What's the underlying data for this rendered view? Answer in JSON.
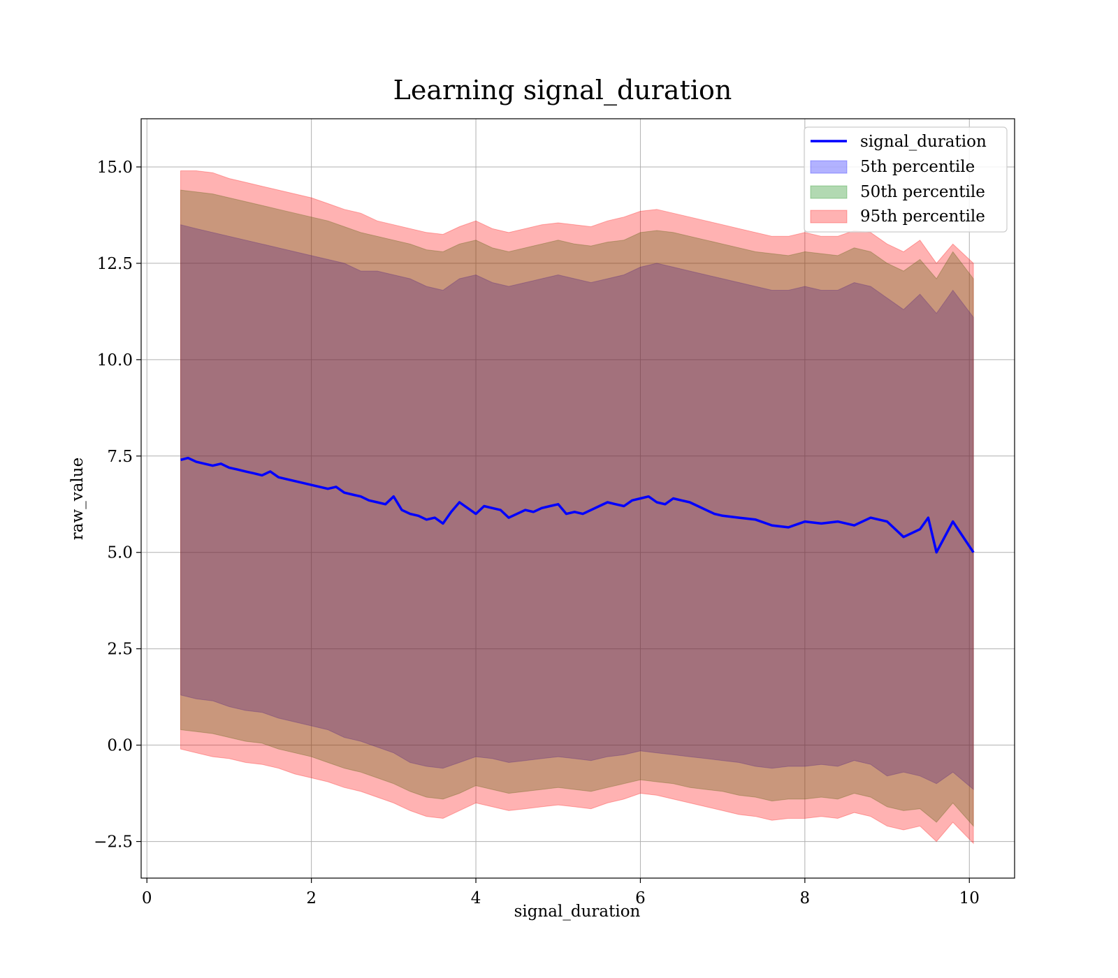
{
  "chart_data": {
    "type": "line",
    "title": "Learning signal_duration",
    "xlabel": "signal_duration",
    "ylabel": "raw_value",
    "xlim": [
      -0.07,
      10.55
    ],
    "ylim": [
      -3.45,
      16.25
    ],
    "grid": true,
    "legend_position": "top-right",
    "x_ticks": [
      0,
      2,
      4,
      6,
      8,
      10
    ],
    "x_tick_labels": [
      "0",
      "2",
      "4",
      "6",
      "8",
      "10"
    ],
    "y_ticks": [
      -2.5,
      0.0,
      2.5,
      5.0,
      7.5,
      10.0,
      12.5,
      15.0
    ],
    "y_tick_labels": [
      "−2.5",
      "0.0",
      "2.5",
      "5.0",
      "7.5",
      "10.0",
      "12.5",
      "15.0"
    ],
    "colors": {
      "line": "#0000ff",
      "p5": "#0000ff",
      "p50": "#008000",
      "p95": "#ff0000"
    },
    "series": [
      {
        "name": "signal_duration",
        "kind": "line",
        "x": [
          0.41,
          0.5,
          0.6,
          0.7,
          0.8,
          0.9,
          1.0,
          1.1,
          1.2,
          1.3,
          1.4,
          1.5,
          1.6,
          1.7,
          1.8,
          1.9,
          2.0,
          2.1,
          2.2,
          2.3,
          2.4,
          2.5,
          2.6,
          2.7,
          2.8,
          2.9,
          3.0,
          3.1,
          3.2,
          3.3,
          3.4,
          3.5,
          3.6,
          3.7,
          3.8,
          3.9,
          4.0,
          4.1,
          4.2,
          4.3,
          4.4,
          4.5,
          4.6,
          4.7,
          4.8,
          4.9,
          5.0,
          5.1,
          5.2,
          5.3,
          5.4,
          5.5,
          5.6,
          5.7,
          5.8,
          5.9,
          6.0,
          6.1,
          6.2,
          6.3,
          6.4,
          6.5,
          6.6,
          6.7,
          6.8,
          6.9,
          7.0,
          7.2,
          7.4,
          7.6,
          7.8,
          8.0,
          8.2,
          8.4,
          8.6,
          8.8,
          9.0,
          9.2,
          9.4,
          9.5,
          9.6,
          9.8,
          10.05
        ],
        "values": [
          7.4,
          7.45,
          7.35,
          7.3,
          7.25,
          7.3,
          7.2,
          7.15,
          7.1,
          7.05,
          7.0,
          7.1,
          6.95,
          6.9,
          6.85,
          6.8,
          6.75,
          6.7,
          6.65,
          6.7,
          6.55,
          6.5,
          6.45,
          6.35,
          6.3,
          6.25,
          6.45,
          6.1,
          6.0,
          5.95,
          5.85,
          5.9,
          5.75,
          6.05,
          6.3,
          6.15,
          6.0,
          6.2,
          6.15,
          6.1,
          5.9,
          6.0,
          6.1,
          6.05,
          6.15,
          6.2,
          6.25,
          6.0,
          6.05,
          6.0,
          6.1,
          6.2,
          6.3,
          6.25,
          6.2,
          6.35,
          6.4,
          6.45,
          6.3,
          6.25,
          6.4,
          6.35,
          6.3,
          6.2,
          6.1,
          6.0,
          5.95,
          5.9,
          5.85,
          5.7,
          5.65,
          5.8,
          5.75,
          5.8,
          5.7,
          5.9,
          5.8,
          5.4,
          5.6,
          5.9,
          5.0,
          5.8,
          5.0
        ]
      },
      {
        "name": "5th percentile",
        "kind": "band",
        "x": [
          0.41,
          0.6,
          0.8,
          1.0,
          1.2,
          1.4,
          1.6,
          1.8,
          2.0,
          2.2,
          2.4,
          2.6,
          2.8,
          3.0,
          3.2,
          3.4,
          3.6,
          3.8,
          4.0,
          4.2,
          4.4,
          4.6,
          4.8,
          5.0,
          5.2,
          5.4,
          5.6,
          5.8,
          6.0,
          6.2,
          6.4,
          6.6,
          6.8,
          7.0,
          7.2,
          7.4,
          7.6,
          7.8,
          8.0,
          8.2,
          8.4,
          8.6,
          8.8,
          9.0,
          9.2,
          9.4,
          9.6,
          9.8,
          10.05
        ],
        "lower": [
          1.3,
          1.2,
          1.15,
          1.0,
          0.9,
          0.85,
          0.7,
          0.6,
          0.5,
          0.4,
          0.2,
          0.1,
          -0.05,
          -0.2,
          -0.45,
          -0.55,
          -0.6,
          -0.45,
          -0.3,
          -0.35,
          -0.45,
          -0.4,
          -0.35,
          -0.3,
          -0.35,
          -0.4,
          -0.3,
          -0.25,
          -0.15,
          -0.2,
          -0.25,
          -0.3,
          -0.35,
          -0.4,
          -0.45,
          -0.55,
          -0.6,
          -0.55,
          -0.55,
          -0.5,
          -0.55,
          -0.4,
          -0.5,
          -0.8,
          -0.7,
          -0.8,
          -1.0,
          -0.7,
          -1.15
        ],
        "upper": [
          13.5,
          13.4,
          13.3,
          13.2,
          13.1,
          13.0,
          12.9,
          12.8,
          12.7,
          12.6,
          12.5,
          12.3,
          12.3,
          12.2,
          12.1,
          11.9,
          11.8,
          12.1,
          12.2,
          12.0,
          11.9,
          12.0,
          12.1,
          12.2,
          12.1,
          12.0,
          12.1,
          12.2,
          12.4,
          12.5,
          12.4,
          12.3,
          12.2,
          12.1,
          12.0,
          11.9,
          11.8,
          11.8,
          11.9,
          11.8,
          11.8,
          12.0,
          11.9,
          11.6,
          11.3,
          11.7,
          11.2,
          11.8,
          11.1
        ]
      },
      {
        "name": "50th percentile",
        "kind": "band",
        "x": [
          0.41,
          0.6,
          0.8,
          1.0,
          1.2,
          1.4,
          1.6,
          1.8,
          2.0,
          2.2,
          2.4,
          2.6,
          2.8,
          3.0,
          3.2,
          3.4,
          3.6,
          3.8,
          4.0,
          4.2,
          4.4,
          4.6,
          4.8,
          5.0,
          5.2,
          5.4,
          5.6,
          5.8,
          6.0,
          6.2,
          6.4,
          6.6,
          6.8,
          7.0,
          7.2,
          7.4,
          7.6,
          7.8,
          8.0,
          8.2,
          8.4,
          8.6,
          8.8,
          9.0,
          9.2,
          9.4,
          9.6,
          9.8,
          10.05
        ],
        "lower": [
          0.4,
          0.35,
          0.3,
          0.2,
          0.1,
          0.05,
          -0.1,
          -0.2,
          -0.3,
          -0.45,
          -0.6,
          -0.7,
          -0.85,
          -1.0,
          -1.2,
          -1.35,
          -1.4,
          -1.25,
          -1.05,
          -1.15,
          -1.25,
          -1.2,
          -1.15,
          -1.1,
          -1.15,
          -1.2,
          -1.1,
          -1.0,
          -0.9,
          -0.95,
          -1.0,
          -1.1,
          -1.15,
          -1.2,
          -1.3,
          -1.35,
          -1.45,
          -1.4,
          -1.4,
          -1.35,
          -1.4,
          -1.25,
          -1.35,
          -1.6,
          -1.7,
          -1.65,
          -2.0,
          -1.5,
          -2.1
        ],
        "upper": [
          14.4,
          14.35,
          14.3,
          14.2,
          14.1,
          14.0,
          13.9,
          13.8,
          13.7,
          13.6,
          13.45,
          13.3,
          13.2,
          13.1,
          13.0,
          12.85,
          12.8,
          13.0,
          13.1,
          12.9,
          12.8,
          12.9,
          13.0,
          13.1,
          13.0,
          12.95,
          13.05,
          13.1,
          13.3,
          13.35,
          13.3,
          13.2,
          13.1,
          13.0,
          12.9,
          12.8,
          12.75,
          12.7,
          12.8,
          12.75,
          12.7,
          12.9,
          12.8,
          12.5,
          12.3,
          12.6,
          12.1,
          12.8,
          12.1
        ]
      },
      {
        "name": "95th percentile",
        "kind": "band",
        "x": [
          0.41,
          0.6,
          0.8,
          1.0,
          1.2,
          1.4,
          1.6,
          1.8,
          2.0,
          2.2,
          2.4,
          2.6,
          2.8,
          3.0,
          3.2,
          3.4,
          3.6,
          3.8,
          4.0,
          4.2,
          4.4,
          4.6,
          4.8,
          5.0,
          5.2,
          5.4,
          5.6,
          5.8,
          6.0,
          6.2,
          6.4,
          6.6,
          6.8,
          7.0,
          7.2,
          7.4,
          7.6,
          7.8,
          8.0,
          8.2,
          8.4,
          8.6,
          8.8,
          9.0,
          9.2,
          9.4,
          9.6,
          9.8,
          10.05
        ],
        "lower": [
          -0.1,
          -0.2,
          -0.3,
          -0.35,
          -0.45,
          -0.5,
          -0.6,
          -0.75,
          -0.85,
          -0.95,
          -1.1,
          -1.2,
          -1.35,
          -1.5,
          -1.7,
          -1.85,
          -1.9,
          -1.7,
          -1.5,
          -1.6,
          -1.7,
          -1.65,
          -1.6,
          -1.55,
          -1.6,
          -1.65,
          -1.5,
          -1.4,
          -1.25,
          -1.3,
          -1.4,
          -1.5,
          -1.6,
          -1.7,
          -1.8,
          -1.85,
          -1.95,
          -1.9,
          -1.9,
          -1.85,
          -1.9,
          -1.75,
          -1.85,
          -2.1,
          -2.2,
          -2.1,
          -2.5,
          -2.0,
          -2.55
        ],
        "upper": [
          14.9,
          14.9,
          14.85,
          14.7,
          14.6,
          14.5,
          14.4,
          14.3,
          14.2,
          14.05,
          13.9,
          13.8,
          13.6,
          13.5,
          13.4,
          13.3,
          13.25,
          13.45,
          13.6,
          13.4,
          13.3,
          13.4,
          13.5,
          13.55,
          13.5,
          13.45,
          13.6,
          13.7,
          13.85,
          13.9,
          13.8,
          13.7,
          13.6,
          13.5,
          13.4,
          13.3,
          13.2,
          13.2,
          13.3,
          13.2,
          13.2,
          13.35,
          13.3,
          13.0,
          12.8,
          13.1,
          12.5,
          13.0,
          12.5
        ]
      }
    ]
  }
}
